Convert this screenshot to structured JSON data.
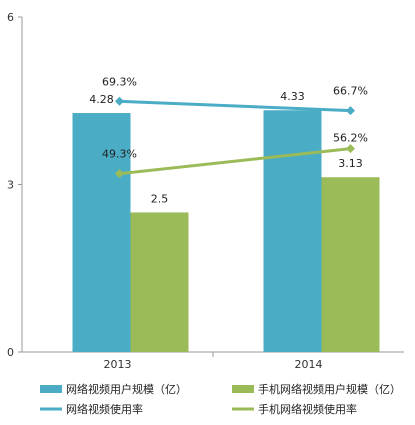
{
  "chart_data": {
    "type": "bar",
    "categories": [
      "2013",
      "2014"
    ],
    "ylim": [
      0,
      6
    ],
    "yticks": [
      "0",
      "3",
      "6"
    ],
    "bar_series": [
      {
        "name": "网络视频用户规模（亿）",
        "color": "#4bacc6",
        "values": [
          4.28,
          4.33
        ],
        "labels": [
          "4.28",
          "4.33"
        ]
      },
      {
        "name": "手机网络视频用户规模（亿）",
        "color": "#9bbb59",
        "values": [
          2.5,
          3.13
        ],
        "labels": [
          "2.5",
          "3.13"
        ]
      }
    ],
    "line_series": [
      {
        "name": "网络视频使用率",
        "color": "#4bacc6",
        "values": [
          69.3,
          66.7
        ],
        "labels": [
          "69.3%",
          "66.7%"
        ]
      },
      {
        "name": "手机网络视频使用率",
        "color": "#9bbb59",
        "values": [
          49.3,
          56.2
        ],
        "labels": [
          "49.3%",
          "56.2%"
        ]
      }
    ],
    "legend_position": "bottom",
    "grid": false
  }
}
